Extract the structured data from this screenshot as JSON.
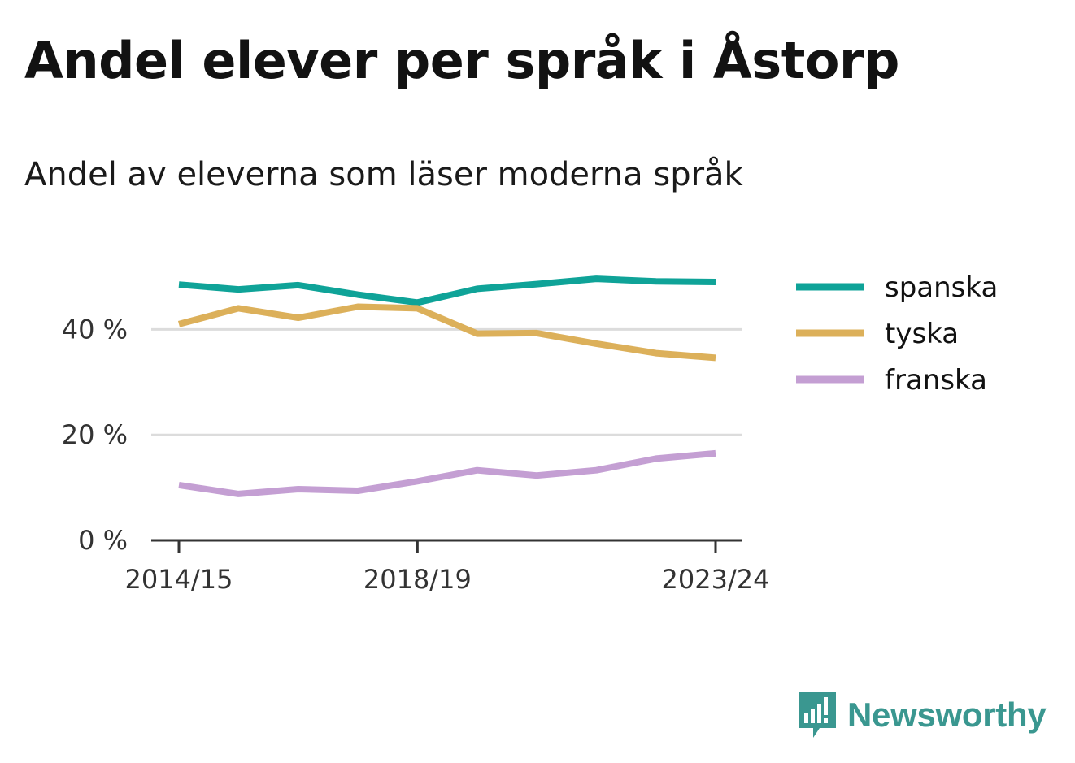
{
  "title": "Andel elever per språk i Åstorp",
  "subtitle": "Andel av eleverna som läser moderna språk",
  "brand": {
    "name": "Newsworthy",
    "color": "#3a9790",
    "icon": "newsworthy-chart-bubble-icon"
  },
  "chart_data": {
    "type": "line",
    "x": [
      "2014/15",
      "2015/16",
      "2016/17",
      "2017/18",
      "2018/19",
      "2019/20",
      "2020/21",
      "2021/22",
      "2022/23",
      "2023/24"
    ],
    "x_tick_labels": [
      "2014/15",
      "2018/19",
      "2023/24"
    ],
    "y_ticks": [
      0,
      20,
      40
    ],
    "y_tick_labels": [
      "0 %",
      "20 %",
      "40 %"
    ],
    "ylim": [
      0,
      50
    ],
    "grid": true,
    "legend_position": "right",
    "series": [
      {
        "name": "spanska",
        "color": "#0fa398",
        "values": [
          48.5,
          47.6,
          48.4,
          46.6,
          45.1,
          47.7,
          48.6,
          49.6,
          49.1,
          49.0
        ]
      },
      {
        "name": "tyska",
        "color": "#dcb05a",
        "values": [
          41.0,
          44.0,
          42.2,
          44.3,
          44.0,
          39.2,
          39.3,
          37.3,
          35.5,
          34.6
        ]
      },
      {
        "name": "franska",
        "color": "#c49fd3",
        "values": [
          10.5,
          8.8,
          9.7,
          9.4,
          11.2,
          13.3,
          12.3,
          13.3,
          15.5,
          16.5
        ]
      }
    ]
  }
}
